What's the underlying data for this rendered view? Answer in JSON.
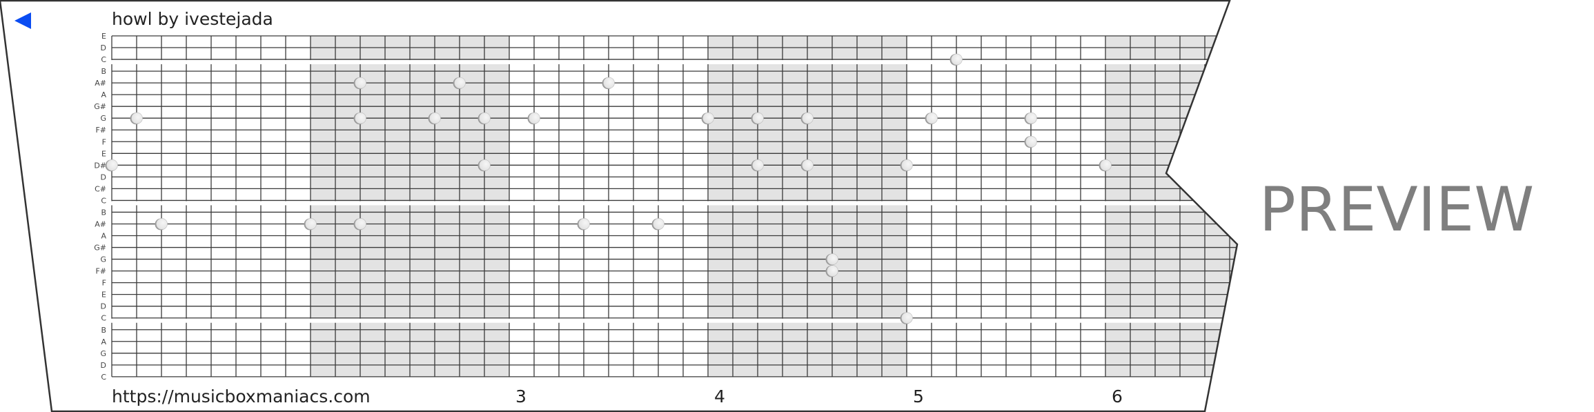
{
  "header": {
    "back_icon": "blue-left-triangle-icon",
    "title": "howl by ivestejada"
  },
  "note_labels": [
    "E",
    "D",
    "C",
    "B",
    "A#",
    "A",
    "G#",
    "G",
    "F#",
    "F",
    "E",
    "D#",
    "D",
    "C#",
    "C",
    "B",
    "A#",
    "A",
    "G#",
    "G",
    "F#",
    "F",
    "E",
    "D",
    "C",
    "B",
    "A",
    "G",
    "D",
    "C"
  ],
  "footer": {
    "url": "https://musicboxmaniacs.com",
    "measure_numbers": [
      "3",
      "4",
      "5",
      "6"
    ]
  },
  "watermark": "PREVIEW",
  "colors": {
    "back_icon": "#0a4cf2",
    "shaded_measure": "#e3e3e3",
    "grid_line": "#3a3a3a",
    "note_fill": "#eeeeee",
    "watermark": "#7f7f7f"
  },
  "notes": [
    {
      "tick": 0,
      "pitch_index": 11
    },
    {
      "tick": 1,
      "pitch_index": 7
    },
    {
      "tick": 2,
      "pitch_index": 16
    },
    {
      "tick": 8,
      "pitch_index": 16
    },
    {
      "tick": 10,
      "pitch_index": 4
    },
    {
      "tick": 10,
      "pitch_index": 7
    },
    {
      "tick": 10,
      "pitch_index": 16
    },
    {
      "tick": 13,
      "pitch_index": 7
    },
    {
      "tick": 14,
      "pitch_index": 4
    },
    {
      "tick": 15,
      "pitch_index": 7
    },
    {
      "tick": 15,
      "pitch_index": 11
    },
    {
      "tick": 17,
      "pitch_index": 7
    },
    {
      "tick": 19,
      "pitch_index": 16
    },
    {
      "tick": 20,
      "pitch_index": 4
    },
    {
      "tick": 22,
      "pitch_index": 16
    },
    {
      "tick": 24,
      "pitch_index": 7
    },
    {
      "tick": 26,
      "pitch_index": 7
    },
    {
      "tick": 26,
      "pitch_index": 11
    },
    {
      "tick": 28,
      "pitch_index": 7
    },
    {
      "tick": 28,
      "pitch_index": 11
    },
    {
      "tick": 29,
      "pitch_index": 19
    },
    {
      "tick": 29,
      "pitch_index": 20
    },
    {
      "tick": 32,
      "pitch_index": 11
    },
    {
      "tick": 32,
      "pitch_index": 24
    },
    {
      "tick": 33,
      "pitch_index": 7
    },
    {
      "tick": 34,
      "pitch_index": 2
    },
    {
      "tick": 37,
      "pitch_index": 7
    },
    {
      "tick": 37,
      "pitch_index": 9
    },
    {
      "tick": 40,
      "pitch_index": 11
    }
  ]
}
